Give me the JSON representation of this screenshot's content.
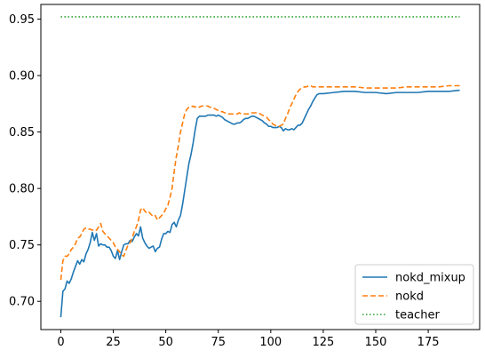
{
  "chart_data": {
    "type": "line",
    "title": "",
    "xlabel": "",
    "ylabel": "",
    "xlim": [
      -9.5,
      199.5
    ],
    "ylim": [
      0.675,
      0.963
    ],
    "x_ticks": [
      0,
      25,
      50,
      75,
      100,
      125,
      150,
      175
    ],
    "y_ticks": [
      0.7,
      0.75,
      0.8,
      0.85,
      0.9,
      0.95
    ],
    "y_tick_labels": [
      "0.70",
      "0.75",
      "0.80",
      "0.85",
      "0.90",
      "0.95"
    ],
    "grid": false,
    "legend_position": "lower-right",
    "series": [
      {
        "name": "nokd_mixup",
        "color": "#1f77b4",
        "style": "solid",
        "points": [
          [
            0,
            0.686
          ],
          [
            1,
            0.709
          ],
          [
            2,
            0.711
          ],
          [
            3,
            0.718
          ],
          [
            4,
            0.716
          ],
          [
            5,
            0.72
          ],
          [
            6,
            0.726
          ],
          [
            7,
            0.731
          ],
          [
            8,
            0.736
          ],
          [
            9,
            0.733
          ],
          [
            10,
            0.737
          ],
          [
            11,
            0.735
          ],
          [
            12,
            0.742
          ],
          [
            13,
            0.746
          ],
          [
            14,
            0.752
          ],
          [
            15,
            0.761
          ],
          [
            16,
            0.754
          ],
          [
            17,
            0.76
          ],
          [
            18,
            0.749
          ],
          [
            19,
            0.751
          ],
          [
            20,
            0.75
          ],
          [
            21,
            0.75
          ],
          [
            22,
            0.748
          ],
          [
            23,
            0.748
          ],
          [
            24,
            0.745
          ],
          [
            25,
            0.74
          ],
          [
            26,
            0.738
          ],
          [
            27,
            0.745
          ],
          [
            28,
            0.737
          ],
          [
            29,
            0.744
          ],
          [
            30,
            0.75
          ],
          [
            31,
            0.751
          ],
          [
            32,
            0.751
          ],
          [
            33,
            0.754
          ],
          [
            34,
            0.753
          ],
          [
            35,
            0.757
          ],
          [
            36,
            0.76
          ],
          [
            37,
            0.758
          ],
          [
            38,
            0.766
          ],
          [
            39,
            0.756
          ],
          [
            40,
            0.752
          ],
          [
            41,
            0.749
          ],
          [
            42,
            0.747
          ],
          [
            43,
            0.748
          ],
          [
            44,
            0.749
          ],
          [
            45,
            0.744
          ],
          [
            46,
            0.747
          ],
          [
            47,
            0.748
          ],
          [
            48,
            0.755
          ],
          [
            49,
            0.76
          ],
          [
            50,
            0.76
          ],
          [
            51,
            0.762
          ],
          [
            52,
            0.761
          ],
          [
            53,
            0.768
          ],
          [
            54,
            0.77
          ],
          [
            55,
            0.766
          ],
          [
            56,
            0.772
          ],
          [
            57,
            0.776
          ],
          [
            58,
            0.786
          ],
          [
            59,
            0.798
          ],
          [
            60,
            0.81
          ],
          [
            61,
            0.822
          ],
          [
            62,
            0.83
          ],
          [
            63,
            0.84
          ],
          [
            64,
            0.852
          ],
          [
            65,
            0.862
          ],
          [
            66,
            0.864
          ],
          [
            67,
            0.864
          ],
          [
            68,
            0.864
          ],
          [
            69,
            0.864
          ],
          [
            70,
            0.865
          ],
          [
            71,
            0.865
          ],
          [
            72,
            0.865
          ],
          [
            73,
            0.865
          ],
          [
            74,
            0.864
          ],
          [
            75,
            0.865
          ],
          [
            76,
            0.864
          ],
          [
            77,
            0.863
          ],
          [
            78,
            0.861
          ],
          [
            79,
            0.86
          ],
          [
            80,
            0.859
          ],
          [
            81,
            0.858
          ],
          [
            82,
            0.857
          ],
          [
            83,
            0.857
          ],
          [
            84,
            0.858
          ],
          [
            85,
            0.858
          ],
          [
            86,
            0.859
          ],
          [
            87,
            0.861
          ],
          [
            88,
            0.862
          ],
          [
            89,
            0.862
          ],
          [
            90,
            0.863
          ],
          [
            91,
            0.864
          ],
          [
            92,
            0.864
          ],
          [
            93,
            0.863
          ],
          [
            94,
            0.862
          ],
          [
            95,
            0.861
          ],
          [
            96,
            0.86
          ],
          [
            97,
            0.858
          ],
          [
            98,
            0.857
          ],
          [
            99,
            0.855
          ],
          [
            100,
            0.855
          ],
          [
            101,
            0.854
          ],
          [
            102,
            0.854
          ],
          [
            103,
            0.854
          ],
          [
            104,
            0.855
          ],
          [
            105,
            0.854
          ],
          [
            106,
            0.851
          ],
          [
            107,
            0.853
          ],
          [
            108,
            0.852
          ],
          [
            109,
            0.852
          ],
          [
            110,
            0.853
          ],
          [
            111,
            0.852
          ],
          [
            112,
            0.854
          ],
          [
            113,
            0.856
          ],
          [
            114,
            0.856
          ],
          [
            115,
            0.858
          ],
          [
            116,
            0.862
          ],
          [
            117,
            0.866
          ],
          [
            118,
            0.87
          ],
          [
            119,
            0.873
          ],
          [
            120,
            0.877
          ],
          [
            121,
            0.88
          ],
          [
            122,
            0.883
          ],
          [
            123,
            0.884
          ],
          [
            124,
            0.884
          ],
          [
            125,
            0.884
          ],
          [
            130,
            0.885
          ],
          [
            135,
            0.886
          ],
          [
            140,
            0.886
          ],
          [
            145,
            0.885
          ],
          [
            150,
            0.885
          ],
          [
            155,
            0.884
          ],
          [
            160,
            0.885
          ],
          [
            165,
            0.885
          ],
          [
            170,
            0.885
          ],
          [
            175,
            0.886
          ],
          [
            180,
            0.886
          ],
          [
            185,
            0.886
          ],
          [
            190,
            0.887
          ]
        ]
      },
      {
        "name": "nokd",
        "color": "#ff7f0e",
        "style": "dashed",
        "points": [
          [
            0,
            0.719
          ],
          [
            1,
            0.736
          ],
          [
            2,
            0.74
          ],
          [
            3,
            0.74
          ],
          [
            4,
            0.742
          ],
          [
            5,
            0.746
          ],
          [
            6,
            0.748
          ],
          [
            7,
            0.751
          ],
          [
            8,
            0.756
          ],
          [
            9,
            0.757
          ],
          [
            10,
            0.76
          ],
          [
            11,
            0.764
          ],
          [
            12,
            0.765
          ],
          [
            13,
            0.764
          ],
          [
            14,
            0.764
          ],
          [
            15,
            0.763
          ],
          [
            16,
            0.764
          ],
          [
            17,
            0.763
          ],
          [
            18,
            0.766
          ],
          [
            19,
            0.769
          ],
          [
            20,
            0.762
          ],
          [
            21,
            0.76
          ],
          [
            22,
            0.758
          ],
          [
            23,
            0.756
          ],
          [
            24,
            0.754
          ],
          [
            25,
            0.752
          ],
          [
            26,
            0.748
          ],
          [
            27,
            0.746
          ],
          [
            28,
            0.744
          ],
          [
            29,
            0.741
          ],
          [
            30,
            0.74
          ],
          [
            31,
            0.745
          ],
          [
            32,
            0.75
          ],
          [
            33,
            0.752
          ],
          [
            34,
            0.756
          ],
          [
            35,
            0.762
          ],
          [
            36,
            0.766
          ],
          [
            37,
            0.772
          ],
          [
            38,
            0.781
          ],
          [
            39,
            0.783
          ],
          [
            40,
            0.78
          ],
          [
            41,
            0.778
          ],
          [
            42,
            0.779
          ],
          [
            43,
            0.777
          ],
          [
            44,
            0.775
          ],
          [
            45,
            0.776
          ],
          [
            46,
            0.772
          ],
          [
            47,
            0.774
          ],
          [
            48,
            0.776
          ],
          [
            49,
            0.778
          ],
          [
            50,
            0.782
          ],
          [
            51,
            0.785
          ],
          [
            52,
            0.792
          ],
          [
            53,
            0.8
          ],
          [
            54,
            0.815
          ],
          [
            55,
            0.828
          ],
          [
            56,
            0.838
          ],
          [
            57,
            0.85
          ],
          [
            58,
            0.858
          ],
          [
            59,
            0.866
          ],
          [
            60,
            0.87
          ],
          [
            61,
            0.872
          ],
          [
            62,
            0.872
          ],
          [
            63,
            0.873
          ],
          [
            64,
            0.872
          ],
          [
            65,
            0.873
          ],
          [
            66,
            0.872
          ],
          [
            67,
            0.873
          ],
          [
            68,
            0.873
          ],
          [
            69,
            0.873
          ],
          [
            70,
            0.873
          ],
          [
            71,
            0.872
          ],
          [
            72,
            0.872
          ],
          [
            73,
            0.871
          ],
          [
            74,
            0.87
          ],
          [
            75,
            0.869
          ],
          [
            76,
            0.868
          ],
          [
            77,
            0.868
          ],
          [
            78,
            0.867
          ],
          [
            79,
            0.867
          ],
          [
            80,
            0.866
          ],
          [
            81,
            0.866
          ],
          [
            82,
            0.866
          ],
          [
            83,
            0.866
          ],
          [
            84,
            0.866
          ],
          [
            85,
            0.867
          ],
          [
            86,
            0.866
          ],
          [
            87,
            0.866
          ],
          [
            88,
            0.866
          ],
          [
            89,
            0.866
          ],
          [
            90,
            0.866
          ],
          [
            91,
            0.867
          ],
          [
            92,
            0.867
          ],
          [
            93,
            0.867
          ],
          [
            94,
            0.867
          ],
          [
            95,
            0.866
          ],
          [
            96,
            0.865
          ],
          [
            97,
            0.864
          ],
          [
            98,
            0.863
          ],
          [
            99,
            0.861
          ],
          [
            100,
            0.859
          ],
          [
            101,
            0.857
          ],
          [
            102,
            0.856
          ],
          [
            103,
            0.855
          ],
          [
            104,
            0.855
          ],
          [
            105,
            0.856
          ],
          [
            106,
            0.857
          ],
          [
            107,
            0.862
          ],
          [
            108,
            0.866
          ],
          [
            109,
            0.871
          ],
          [
            110,
            0.875
          ],
          [
            111,
            0.879
          ],
          [
            112,
            0.883
          ],
          [
            113,
            0.886
          ],
          [
            114,
            0.888
          ],
          [
            115,
            0.889
          ],
          [
            116,
            0.89
          ],
          [
            117,
            0.89
          ],
          [
            118,
            0.891
          ],
          [
            119,
            0.891
          ],
          [
            120,
            0.89
          ],
          [
            125,
            0.89
          ],
          [
            130,
            0.89
          ],
          [
            135,
            0.89
          ],
          [
            140,
            0.89
          ],
          [
            145,
            0.889
          ],
          [
            150,
            0.889
          ],
          [
            155,
            0.889
          ],
          [
            160,
            0.889
          ],
          [
            165,
            0.89
          ],
          [
            170,
            0.89
          ],
          [
            175,
            0.89
          ],
          [
            180,
            0.89
          ],
          [
            185,
            0.891
          ],
          [
            190,
            0.891
          ]
        ]
      },
      {
        "name": "teacher",
        "color": "#2ca02c",
        "style": "dotted",
        "points": [
          [
            0,
            0.952
          ],
          [
            190,
            0.952
          ]
        ]
      }
    ]
  }
}
